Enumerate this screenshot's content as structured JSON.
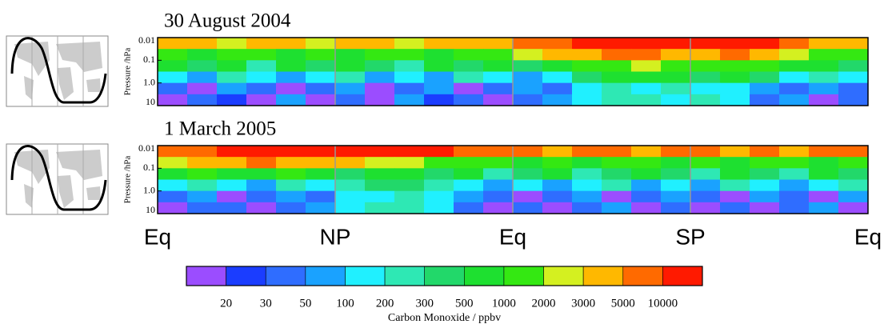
{
  "chart_data": {
    "type": "heatmap",
    "y_label": "Pressure /hPa",
    "ylim": [
      10,
      0.01
    ],
    "log_y": true,
    "yticks": [
      0.01,
      0.1,
      {
        "value": 1,
        "label": "1.0"
      },
      10
    ],
    "categories": [
      "Eq",
      "NP",
      "Eq",
      "SP",
      "Eq"
    ],
    "panels": [
      {
        "title": "30 August 2004",
        "z": [
          [
            4000,
            4000,
            2500,
            4000,
            4000,
            2500,
            4000,
            4000,
            2500,
            4000,
            4000,
            4000,
            7000,
            7000,
            15000,
            15000,
            15000,
            15000,
            15000,
            15000,
            15000,
            7000,
            4000,
            4000
          ],
          [
            1500,
            700,
            1500,
            1500,
            700,
            1500,
            700,
            1500,
            1500,
            700,
            1500,
            1500,
            2500,
            4000,
            4000,
            7000,
            7000,
            4000,
            4000,
            7000,
            4000,
            2500,
            1500,
            1500
          ],
          [
            700,
            400,
            700,
            250,
            700,
            400,
            700,
            400,
            250,
            700,
            400,
            700,
            400,
            700,
            1500,
            1500,
            2500,
            1500,
            1500,
            1500,
            1500,
            700,
            700,
            400
          ],
          [
            150,
            70,
            250,
            150,
            70,
            150,
            250,
            70,
            150,
            70,
            250,
            150,
            70,
            150,
            400,
            700,
            700,
            700,
            400,
            700,
            400,
            150,
            250,
            150
          ],
          [
            40,
            15,
            70,
            40,
            15,
            40,
            70,
            15,
            40,
            70,
            15,
            40,
            70,
            40,
            150,
            250,
            150,
            250,
            150,
            150,
            70,
            40,
            70,
            40
          ],
          [
            15,
            40,
            25,
            15,
            70,
            15,
            40,
            15,
            70,
            25,
            40,
            15,
            40,
            70,
            150,
            250,
            250,
            150,
            250,
            150,
            40,
            70,
            15,
            40
          ]
        ]
      },
      {
        "title": "1 March 2005",
        "z": [
          [
            7000,
            7000,
            15000,
            15000,
            15000,
            15000,
            15000,
            15000,
            15000,
            15000,
            7000,
            7000,
            7000,
            4000,
            7000,
            7000,
            4000,
            7000,
            7000,
            4000,
            7000,
            4000,
            7000,
            7000
          ],
          [
            2500,
            4000,
            4000,
            7000,
            4000,
            4000,
            4000,
            2500,
            2500,
            1500,
            1500,
            1500,
            700,
            1500,
            700,
            1500,
            1500,
            700,
            1500,
            700,
            1500,
            1500,
            700,
            1500
          ],
          [
            700,
            1500,
            700,
            700,
            1500,
            700,
            400,
            700,
            700,
            400,
            700,
            250,
            400,
            700,
            250,
            400,
            700,
            400,
            250,
            700,
            400,
            250,
            700,
            400
          ],
          [
            150,
            250,
            150,
            70,
            250,
            150,
            250,
            400,
            400,
            250,
            150,
            70,
            150,
            70,
            150,
            250,
            70,
            150,
            70,
            250,
            150,
            70,
            150,
            250
          ],
          [
            40,
            70,
            15,
            40,
            70,
            40,
            150,
            150,
            250,
            150,
            70,
            40,
            15,
            40,
            70,
            15,
            40,
            70,
            40,
            15,
            70,
            40,
            15,
            70
          ],
          [
            15,
            40,
            40,
            15,
            40,
            70,
            150,
            250,
            250,
            150,
            40,
            15,
            40,
            15,
            40,
            70,
            15,
            40,
            15,
            40,
            15,
            40,
            70,
            15
          ]
        ]
      }
    ],
    "colorbar": {
      "label": "Carbon Monoxide / ppbv",
      "ticks": [
        20,
        30,
        50,
        100,
        200,
        300,
        500,
        1000,
        2000,
        3000,
        5000,
        10000
      ],
      "colors": [
        "#9b4dff",
        "#1b3dff",
        "#2f6dff",
        "#1aa2ff",
        "#20f0ff",
        "#2ee8b4",
        "#22d86a",
        "#1ee030",
        "#34e812",
        "#d4f020",
        "#ffb800",
        "#ff6a00",
        "#ff1a00"
      ]
    }
  }
}
